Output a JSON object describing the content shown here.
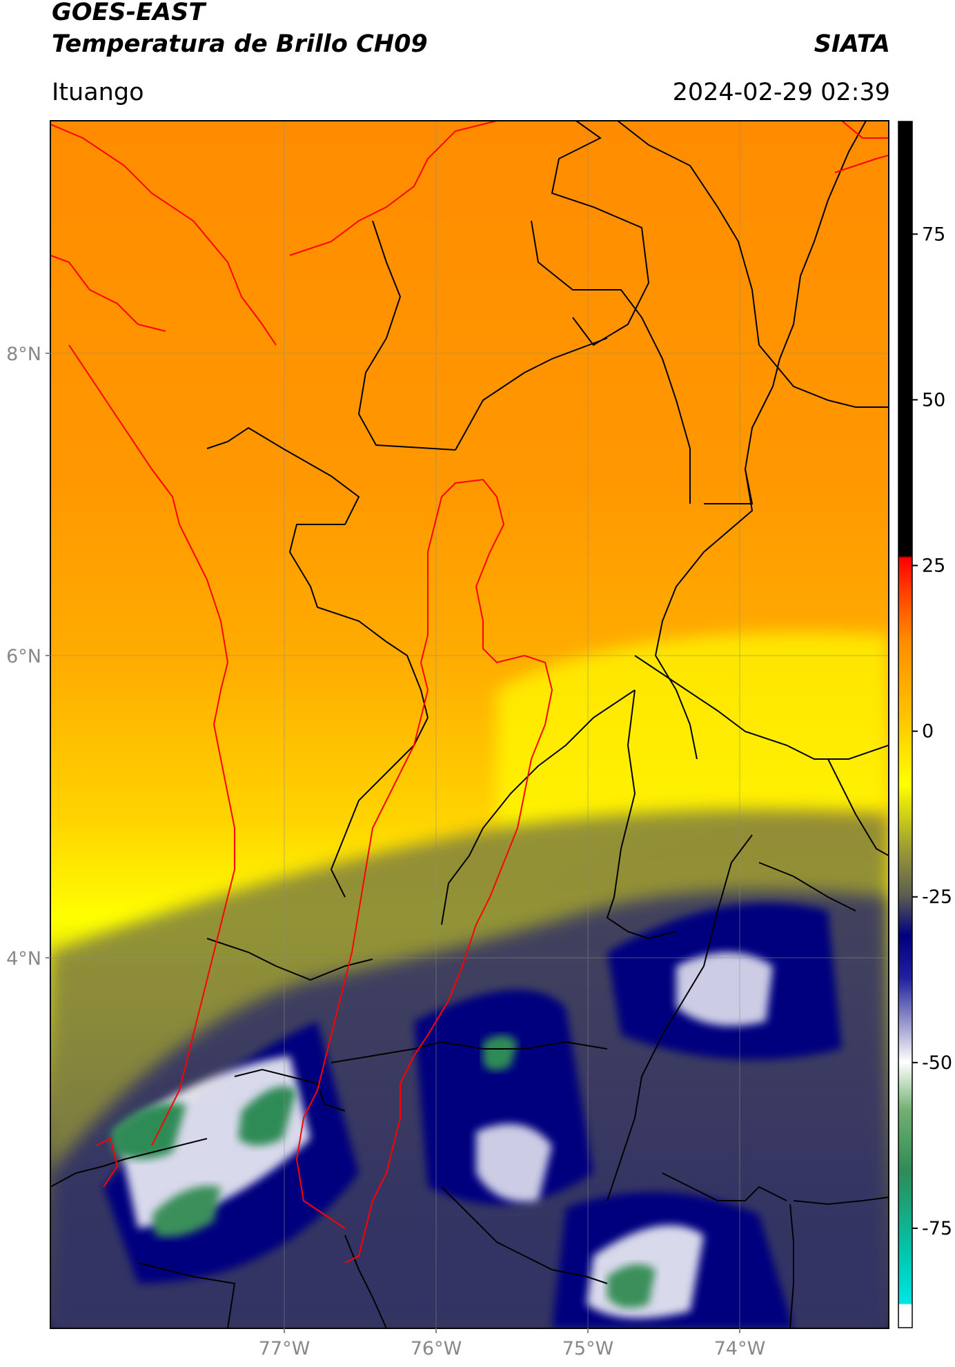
{
  "header": {
    "satellite": "GOES-EAST",
    "product": "Temperatura de Brillo CH09",
    "brand": "SIATA",
    "location": "Ituango",
    "datetime": "2024-02-29 02:39"
  },
  "map": {
    "lat_ticks": [
      "8°N",
      "6°N",
      "4°N"
    ],
    "lon_ticks": [
      "77°W",
      "76°W",
      "75°W",
      "74°W"
    ],
    "lon_range": [
      -78.55,
      -73.0
    ],
    "lat_range": [
      1.7,
      9.55
    ]
  },
  "colorbar": {
    "ticks": [
      "75",
      "50",
      "25",
      "0",
      "-25",
      "-50",
      "-75"
    ],
    "tick_values": [
      75,
      50,
      25,
      0,
      -25,
      -50,
      -75
    ],
    "range": [
      -90,
      92
    ],
    "colors": {
      "black": "#000000",
      "red": "#ff0000",
      "orange": "#ff8c00",
      "yellow": "#ffff00",
      "olive": "#808040",
      "navy": "#00007f",
      "white": "#ffffff",
      "green": "#2e8b57",
      "cyan": "#00e5e5"
    }
  },
  "colors": {
    "basin_outline": "#ff0000",
    "border_outline": "#000000"
  }
}
